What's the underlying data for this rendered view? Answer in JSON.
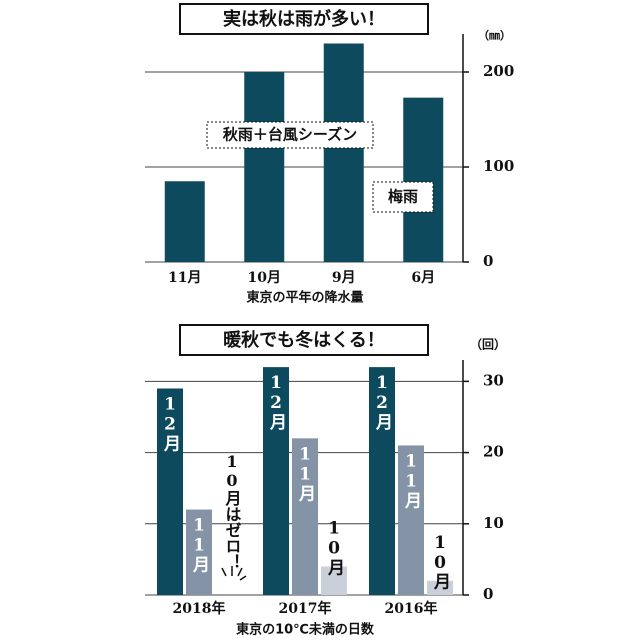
{
  "chart_data": [
    {
      "type": "bar",
      "title": "実は秋は雨が多い！",
      "unit": "（㎜）",
      "x_label": "東京の平年の降水量",
      "categories": [
        "11月",
        "10月",
        "9月",
        "6月"
      ],
      "values": [
        85,
        200,
        230,
        173
      ],
      "color": "#0d4a5e",
      "ylim": [
        0,
        240
      ],
      "yticks": [
        0,
        100,
        200
      ],
      "grid": true,
      "annotations": [
        "秋雨＋台風シーズン",
        "梅雨"
      ]
    },
    {
      "type": "grouped-bar",
      "title": "暖秋でも冬はくる！",
      "unit": "（回）",
      "x_label": "東京の10℃未満の日数",
      "categories": [
        "2018年",
        "2017年",
        "2016年"
      ],
      "series": [
        {
          "name": "12月",
          "color": "#0d4a5e",
          "values": [
            29,
            32,
            32
          ]
        },
        {
          "name": "11月",
          "color": "#8494a6",
          "values": [
            12,
            22,
            21
          ]
        },
        {
          "name": "10月",
          "color": "#c9d0d9",
          "values": [
            0,
            4,
            2
          ]
        }
      ],
      "ylim": [
        0,
        33
      ],
      "yticks": [
        0,
        10,
        20,
        30
      ],
      "grid": true,
      "annotations": [
        "10月はゼロ！"
      ]
    }
  ]
}
